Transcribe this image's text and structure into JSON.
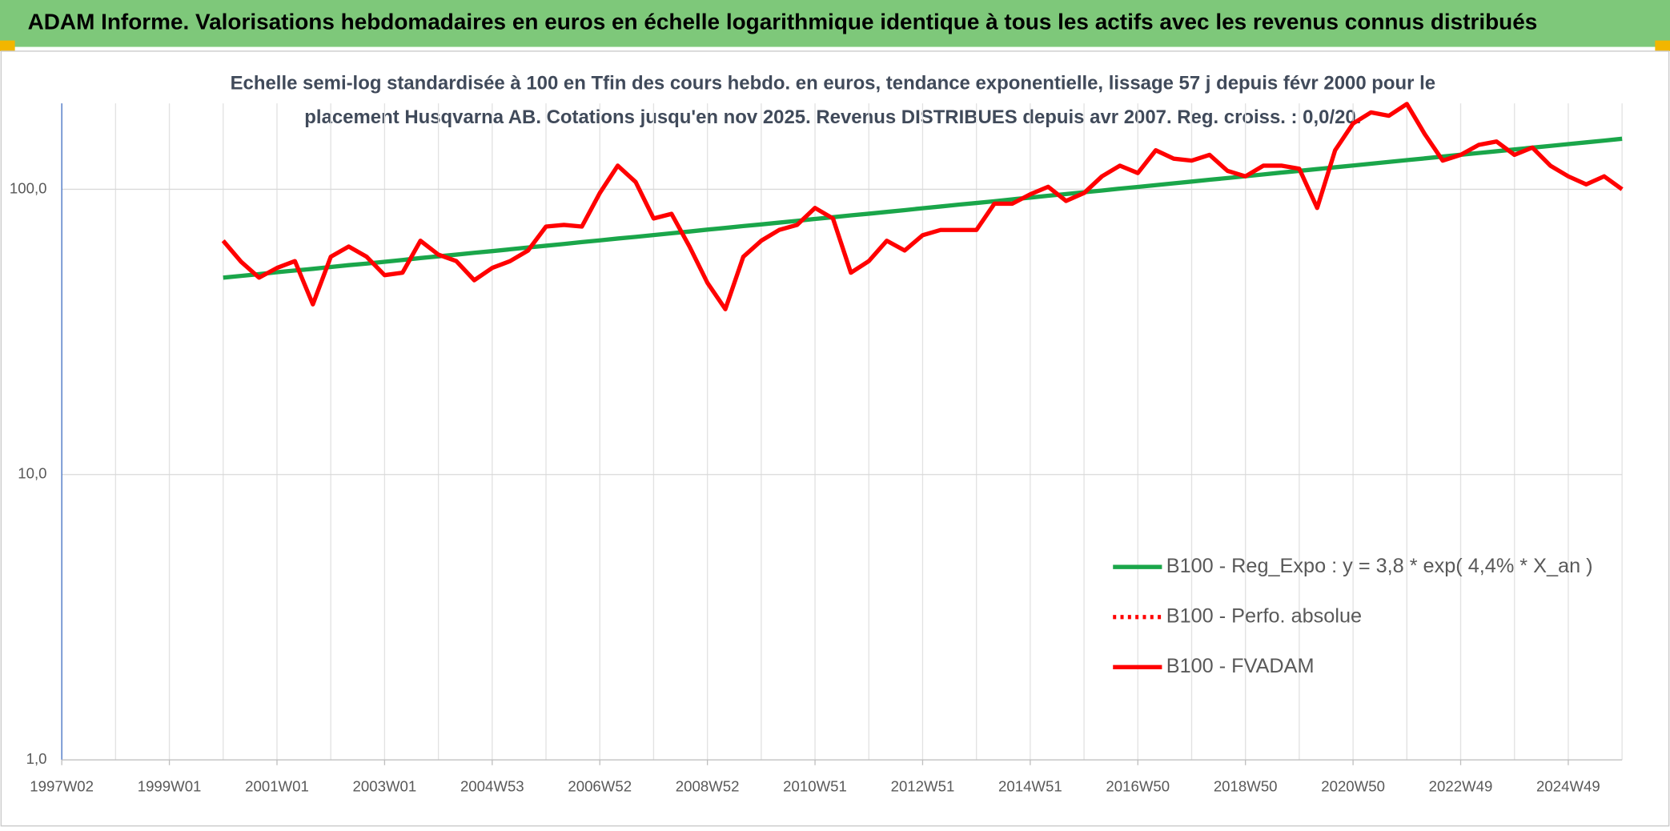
{
  "chart_data": {
    "type": "line",
    "title": "ADAM Informe. Valorisations hebdomadaires en euros en échelle logarithmique identique à tous les actifs avec les revenus connus distribués",
    "subtitle": [
      "Echelle semi-log standardisée à 100 en Tfin des cours hebdo. en euros, tendance exponentielle, lissage 57 j depuis févr 2000 pour le",
      "placement Husqvarna AB. Cotations jusqu'en nov 2025. Revenus DISTRIBUES depuis avr 2007. Reg. croiss. : 0,0/20."
    ],
    "categories": [
      "1997W02",
      null,
      null,
      null,
      null,
      null,
      "1999W01",
      null,
      null,
      null,
      null,
      null,
      "2001W01",
      null,
      null,
      null,
      null,
      null,
      "2003W01",
      null,
      null,
      null,
      null,
      null,
      "2004W53",
      null,
      null,
      null,
      null,
      null,
      "2006W52",
      null,
      null,
      null,
      null,
      null,
      "2008W52",
      null,
      null,
      null,
      null,
      null,
      "2010W51",
      null,
      null,
      null,
      null,
      null,
      "2012W51",
      null,
      null,
      null,
      null,
      null,
      "2014W51",
      null,
      null,
      null,
      null,
      null,
      "2016W50",
      null,
      null,
      null,
      null,
      null,
      "2018W50",
      null,
      null,
      null,
      null,
      null,
      "2020W50",
      null,
      null,
      null,
      null,
      null,
      "2022W49",
      null,
      null,
      null,
      null,
      null,
      "2024W49",
      null,
      null,
      null
    ],
    "series": [
      {
        "name": "B100 - Reg_Expo : y = 3,8 * exp( 4,4% *  X_an )",
        "color": "#1aa64a",
        "style": "solid",
        "values": [
          null,
          null,
          null,
          null,
          null,
          null,
          null,
          null,
          null,
          49.0,
          49.7,
          50.4,
          51.2,
          51.9,
          52.6,
          53.4,
          54.2,
          54.9,
          55.7,
          56.5,
          57.4,
          58.2,
          59.0,
          59.9,
          60.7,
          61.6,
          62.5,
          63.4,
          64.3,
          65.3,
          66.2,
          67.2,
          68.1,
          69.1,
          70.1,
          71.1,
          72.2,
          73.2,
          74.3,
          75.3,
          76.4,
          77.5,
          78.7,
          79.8,
          81.0,
          82.1,
          83.3,
          84.5,
          85.8,
          87.0,
          88.3,
          89.5,
          90.8,
          92.2,
          93.5,
          94.9,
          96.2,
          97.6,
          99.0,
          100.5,
          101.9,
          103.4,
          104.9,
          106.4,
          108.0,
          109.5,
          111.1,
          112.7,
          114.4,
          116.0,
          117.7,
          119.4,
          121.1,
          122.9,
          124.7,
          126.5,
          128.3,
          130.2,
          132.1,
          134.0,
          135.9,
          137.9,
          139.9,
          141.9,
          144.0,
          146.0,
          148.1,
          150.3
        ]
      },
      {
        "name": "B100 - Perfo. absolue",
        "color": "#ff0000",
        "style": "dotted",
        "values": [
          null,
          null,
          null,
          null,
          null,
          null,
          null,
          null,
          null,
          66,
          55.7,
          49,
          53,
          56,
          39.5,
          58,
          63,
          58,
          50,
          51,
          66,
          59,
          56,
          48,
          53,
          56,
          61,
          74,
          75,
          74,
          97,
          121,
          106,
          79,
          82,
          63,
          47,
          38,
          58,
          66,
          72,
          75,
          86,
          79,
          51,
          56,
          66,
          61,
          69,
          72,
          72,
          72,
          89,
          89,
          96,
          102,
          91,
          97,
          111,
          121,
          114,
          137,
          128,
          126,
          132,
          116,
          111,
          121,
          121,
          118,
          86,
          137,
          170,
          186,
          181,
          199,
          156,
          126,
          132,
          143,
          147,
          132,
          140,
          121,
          111,
          104,
          111,
          100
        ]
      },
      {
        "name": "B100 - FVADAM",
        "color": "#ff0000",
        "style": "solid",
        "values": [
          null,
          null,
          null,
          null,
          null,
          null,
          null,
          null,
          null,
          66,
          55.7,
          49,
          53,
          56,
          39.5,
          58,
          63,
          58,
          50,
          51,
          66,
          59,
          56,
          48,
          53,
          56,
          61,
          74,
          75,
          74,
          97,
          121,
          106,
          79,
          82,
          63,
          47,
          38,
          58,
          66,
          72,
          75,
          86,
          79,
          51,
          56,
          66,
          61,
          69,
          72,
          72,
          72,
          89,
          89,
          96,
          102,
          91,
          97,
          111,
          121,
          114,
          137,
          128,
          126,
          132,
          116,
          111,
          121,
          121,
          118,
          86,
          137,
          170,
          186,
          181,
          199,
          156,
          126,
          132,
          143,
          147,
          132,
          140,
          121,
          111,
          104,
          111,
          100
        ]
      }
    ],
    "log_scale": true,
    "ylim": [
      1,
      200
    ],
    "yticks": [
      {
        "value": 1,
        "label": "1,0"
      },
      {
        "value": 10,
        "label": "10,0"
      },
      {
        "value": 100,
        "label": "100,0"
      }
    ],
    "grid": true,
    "legend": "right"
  }
}
